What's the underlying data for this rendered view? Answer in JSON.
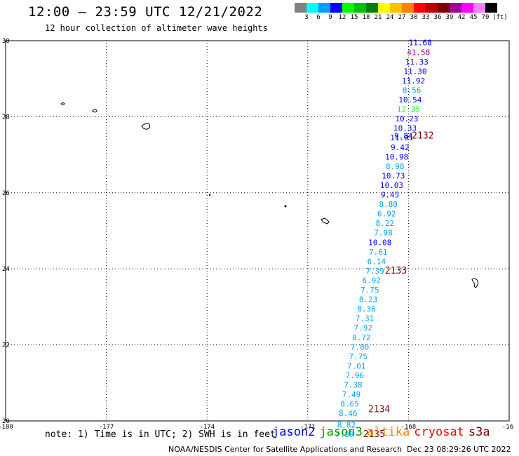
{
  "header": {
    "title": "12:00 — 23:59 UTC 12/21/2022",
    "subtitle": "12 hour collection of altimeter wave heights"
  },
  "legend": {
    "unit": "(ft)",
    "colors": [
      "#808080",
      "#00ffff",
      "#00a0ff",
      "#0000ff",
      "#00ff00",
      "#00c000",
      "#008000",
      "#ffff00",
      "#ffc000",
      "#ff8000",
      "#ff0000",
      "#c00000",
      "#800000",
      "#a000a0",
      "#ff00ff",
      "#ff80ff",
      "#000000"
    ],
    "labels": [
      "3",
      "6",
      "9",
      "12",
      "15",
      "18",
      "21",
      "24",
      "27",
      "30",
      "33",
      "36",
      "39",
      "42",
      "45",
      "70"
    ]
  },
  "map": {
    "lon_ticks": [
      "-180",
      "-177",
      "-174",
      "-171",
      "-168",
      "-16"
    ],
    "lat_ticks": [
      "30",
      "28",
      "26",
      "24",
      "22",
      "20"
    ],
    "lon_range": [
      -180,
      -165
    ],
    "lat_range": [
      20,
      30
    ]
  },
  "observations": [
    {
      "value": "11.68",
      "color": "#0000ff",
      "lon": -167.65,
      "lat": 29.95
    },
    {
      "value": "41.58",
      "color": "#a000a0",
      "lon": -167.7,
      "lat": 29.7
    },
    {
      "value": "11.33",
      "color": "#0000ff",
      "lon": -167.75,
      "lat": 29.45
    },
    {
      "value": "11.30",
      "color": "#0000ff",
      "lon": -167.8,
      "lat": 29.2
    },
    {
      "value": "11.92",
      "color": "#0000ff",
      "lon": -167.85,
      "lat": 28.95
    },
    {
      "value": "8.56",
      "color": "#00a0ff",
      "lon": -167.9,
      "lat": 28.7
    },
    {
      "value": "10.54",
      "color": "#0000ff",
      "lon": -167.95,
      "lat": 28.45
    },
    {
      "value": "12.35",
      "color": "#00ff00",
      "lon": -168.0,
      "lat": 28.2
    },
    {
      "value": "10.23",
      "color": "#0000ff",
      "lon": -168.05,
      "lat": 27.95
    },
    {
      "value": "10.33",
      "color": "#0000ff",
      "lon": -168.1,
      "lat": 27.7
    },
    {
      "value": "9.84",
      "color": "#0000ff",
      "lon": -168.15,
      "lat": 27.5
    },
    {
      "value": "11.01",
      "color": "#0000ff",
      "lon": -168.2,
      "lat": 27.45
    },
    {
      "value": "9.42",
      "color": "#0000ff",
      "lon": -168.25,
      "lat": 27.2
    },
    {
      "value": "10.98",
      "color": "#0000ff",
      "lon": -168.35,
      "lat": 26.95
    },
    {
      "value": "8.98",
      "color": "#00a0ff",
      "lon": -168.4,
      "lat": 26.7
    },
    {
      "value": "10.73",
      "color": "#0000ff",
      "lon": -168.45,
      "lat": 26.45
    },
    {
      "value": "10.03",
      "color": "#0000ff",
      "lon": -168.5,
      "lat": 26.2
    },
    {
      "value": "9.45",
      "color": "#0000ff",
      "lon": -168.55,
      "lat": 25.95
    },
    {
      "value": "8.80",
      "color": "#00a0ff",
      "lon": -168.6,
      "lat": 25.7
    },
    {
      "value": "6.92",
      "color": "#00a0ff",
      "lon": -168.65,
      "lat": 25.45
    },
    {
      "value": "8.22",
      "color": "#00a0ff",
      "lon": -168.7,
      "lat": 25.2
    },
    {
      "value": "7.98",
      "color": "#00a0ff",
      "lon": -168.75,
      "lat": 24.95
    },
    {
      "value": "10.08",
      "color": "#0000ff",
      "lon": -168.85,
      "lat": 24.7
    },
    {
      "value": "7.61",
      "color": "#00a0ff",
      "lon": -168.9,
      "lat": 24.45
    },
    {
      "value": "6.14",
      "color": "#00a0ff",
      "lon": -168.95,
      "lat": 24.2
    },
    {
      "value": "7.39",
      "color": "#00a0ff",
      "lon": -169.0,
      "lat": 23.95
    },
    {
      "value": "6.92",
      "color": "#00a0ff",
      "lon": -169.1,
      "lat": 23.7
    },
    {
      "value": "7.75",
      "color": "#00a0ff",
      "lon": -169.15,
      "lat": 23.45
    },
    {
      "value": "8.23",
      "color": "#00a0ff",
      "lon": -169.2,
      "lat": 23.2
    },
    {
      "value": "8.36",
      "color": "#00a0ff",
      "lon": -169.25,
      "lat": 22.95
    },
    {
      "value": "7.31",
      "color": "#00a0ff",
      "lon": -169.3,
      "lat": 22.7
    },
    {
      "value": "7.92",
      "color": "#00a0ff",
      "lon": -169.35,
      "lat": 22.45
    },
    {
      "value": "8.72",
      "color": "#00a0ff",
      "lon": -169.4,
      "lat": 22.2
    },
    {
      "value": "7.80",
      "color": "#00a0ff",
      "lon": -169.45,
      "lat": 21.95
    },
    {
      "value": "7.75",
      "color": "#00a0ff",
      "lon": -169.5,
      "lat": 21.7
    },
    {
      "value": "7.01",
      "color": "#00a0ff",
      "lon": -169.55,
      "lat": 21.45
    },
    {
      "value": "7.96",
      "color": "#00a0ff",
      "lon": -169.6,
      "lat": 21.2
    },
    {
      "value": "7.38",
      "color": "#00a0ff",
      "lon": -169.65,
      "lat": 20.95
    },
    {
      "value": "7.49",
      "color": "#00a0ff",
      "lon": -169.7,
      "lat": 20.7
    },
    {
      "value": "8.65",
      "color": "#00a0ff",
      "lon": -169.75,
      "lat": 20.45
    },
    {
      "value": "8.46",
      "color": "#00a0ff",
      "lon": -169.8,
      "lat": 20.2
    },
    {
      "value": "8.82",
      "color": "#00a0ff",
      "lon": -169.85,
      "lat": 19.9
    },
    {
      "value": "7.89",
      "color": "#00a0ff",
      "lon": -169.9,
      "lat": 19.65
    }
  ],
  "time_labels": [
    {
      "value": "2132",
      "color": "#800000",
      "lon": -167.9,
      "lat": 27.5
    },
    {
      "value": "2133",
      "color": "#800000",
      "lon": -168.7,
      "lat": 23.95
    },
    {
      "value": "2134",
      "color": "#800000",
      "lon": -169.2,
      "lat": 20.3
    },
    {
      "value": "2135",
      "color": "#800000",
      "lon": -169.35,
      "lat": 19.65
    }
  ],
  "footer": {
    "note": "note: 1) Time is in UTC; 2) SWH is in feet",
    "satellites": [
      {
        "name": "jason2",
        "color": "#0000ff"
      },
      {
        "name": "jason3",
        "color": "#00a000"
      },
      {
        "name": "altika",
        "color": "#ff8000"
      },
      {
        "name": "cryosat",
        "color": "#ff0000"
      },
      {
        "name": "s3a",
        "color": "#800000"
      }
    ],
    "credit": "NOAA/NESDIS Center for Satellite Applications and Research",
    "timestamp": "Dec 23 08:29:26 UTC 2022"
  }
}
